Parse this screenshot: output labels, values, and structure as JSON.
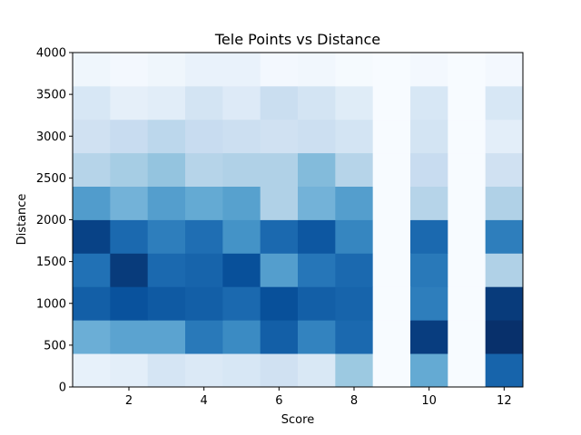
{
  "chart_data": {
    "type": "heatmap",
    "title": "Tele Points vs Distance",
    "xlabel": "Score",
    "ylabel": "Distance",
    "xlim": [
      0.5,
      12.5
    ],
    "ylim": [
      0,
      4000
    ],
    "x_ticks": [
      2,
      4,
      6,
      8,
      10,
      12
    ],
    "y_ticks": [
      0,
      500,
      1000,
      1500,
      2000,
      2500,
      3000,
      3500,
      4000
    ],
    "x_bins": [
      1,
      2,
      3,
      4,
      5,
      6,
      7,
      8,
      9,
      10,
      11,
      12
    ],
    "y_bin_edges": [
      0,
      400,
      800,
      1200,
      1600,
      2000,
      2400,
      2800,
      3200,
      3600,
      4000
    ],
    "colormap": "Blues",
    "intensity_scale": [
      0,
      1
    ],
    "intensity": [
      [
        0.08,
        0.1,
        0.17,
        0.14,
        0.16,
        0.2,
        0.15,
        0.38,
        0.0,
        0.52,
        0.0,
        0.8
      ],
      [
        0.5,
        0.55,
        0.55,
        0.72,
        0.65,
        0.82,
        0.68,
        0.78,
        0.0,
        0.95,
        0.0,
        1.0
      ],
      [
        0.82,
        0.87,
        0.84,
        0.82,
        0.78,
        0.88,
        0.82,
        0.8,
        0.0,
        0.7,
        0.0,
        0.96
      ],
      [
        0.75,
        0.96,
        0.78,
        0.8,
        0.88,
        0.57,
        0.73,
        0.78,
        0.0,
        0.72,
        0.0,
        0.32
      ],
      [
        0.93,
        0.78,
        0.7,
        0.76,
        0.62,
        0.78,
        0.85,
        0.67,
        0.0,
        0.78,
        0.0,
        0.7
      ],
      [
        0.58,
        0.48,
        0.57,
        0.52,
        0.56,
        0.32,
        0.48,
        0.57,
        0.0,
        0.3,
        0.0,
        0.32
      ],
      [
        0.3,
        0.35,
        0.4,
        0.3,
        0.32,
        0.32,
        0.44,
        0.3,
        0.0,
        0.24,
        0.0,
        0.2
      ],
      [
        0.2,
        0.24,
        0.28,
        0.24,
        0.22,
        0.2,
        0.22,
        0.18,
        0.0,
        0.18,
        0.0,
        0.1
      ],
      [
        0.16,
        0.09,
        0.11,
        0.18,
        0.13,
        0.23,
        0.18,
        0.12,
        0.0,
        0.16,
        0.0,
        0.16
      ],
      [
        0.04,
        0.02,
        0.04,
        0.07,
        0.07,
        0.02,
        0.03,
        0.01,
        0.0,
        0.02,
        0.0,
        0.02
      ]
    ],
    "grid": false,
    "legend": "none"
  }
}
